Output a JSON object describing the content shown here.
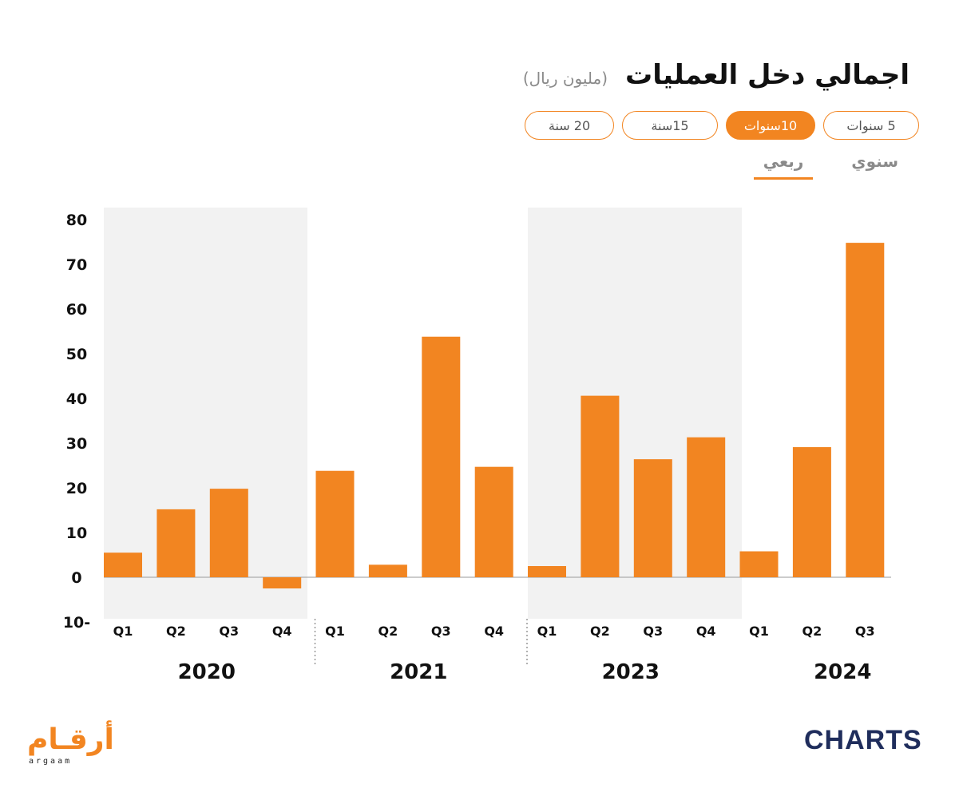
{
  "header": {
    "title": "اجمالي دخل العمليات",
    "unit": "(مليون ريال)"
  },
  "range_pills": [
    {
      "label": "5 سنوات",
      "active": false
    },
    {
      "label": "10سنوات",
      "active": true
    },
    {
      "label": "15سنة",
      "active": false
    },
    {
      "label": "20 سنة",
      "active": false
    }
  ],
  "period_tabs": [
    {
      "label": "سنوي",
      "active": false
    },
    {
      "label": "ربعي",
      "active": true
    }
  ],
  "colors": {
    "accent": "#f28521",
    "shade": "#f2f2f2",
    "brand_navy": "#1f2d5c"
  },
  "chart_data": {
    "type": "bar",
    "ylim": [
      -10,
      80
    ],
    "yticks": [
      "80",
      "70",
      "60",
      "50",
      "40",
      "30",
      "20",
      "10",
      "0",
      "10-"
    ],
    "ytick_values": [
      80,
      70,
      60,
      50,
      40,
      30,
      20,
      10,
      0,
      -10
    ],
    "groups": [
      {
        "year": "2020",
        "shaded": true,
        "bars": [
          {
            "q": "Q1",
            "v": 5.5
          },
          {
            "q": "Q2",
            "v": 15.2
          },
          {
            "q": "Q3",
            "v": 19.8
          },
          {
            "q": "Q4",
            "v": -2.5
          }
        ]
      },
      {
        "year": "2021",
        "shaded": false,
        "bars": [
          {
            "q": "Q1",
            "v": 23.8
          },
          {
            "q": "Q2",
            "v": 2.8
          },
          {
            "q": "Q3",
            "v": 53.8
          },
          {
            "q": "Q4",
            "v": 24.7
          }
        ]
      },
      {
        "year": "2023",
        "shaded": true,
        "bars": [
          {
            "q": "Q1",
            "v": 2.5
          },
          {
            "q": "Q2",
            "v": 40.6
          },
          {
            "q": "Q3",
            "v": 26.4
          },
          {
            "q": "Q4",
            "v": 31.3
          }
        ]
      },
      {
        "year": "2024",
        "shaded": false,
        "bars": [
          {
            "q": "Q1",
            "v": 5.8
          },
          {
            "q": "Q2",
            "v": 29.1
          },
          {
            "q": "Q3",
            "v": 74.8
          }
        ]
      }
    ]
  },
  "logos": {
    "argaam_ar": "أرقـام",
    "argaam_en": "argaam",
    "charts": "CHARTS"
  }
}
